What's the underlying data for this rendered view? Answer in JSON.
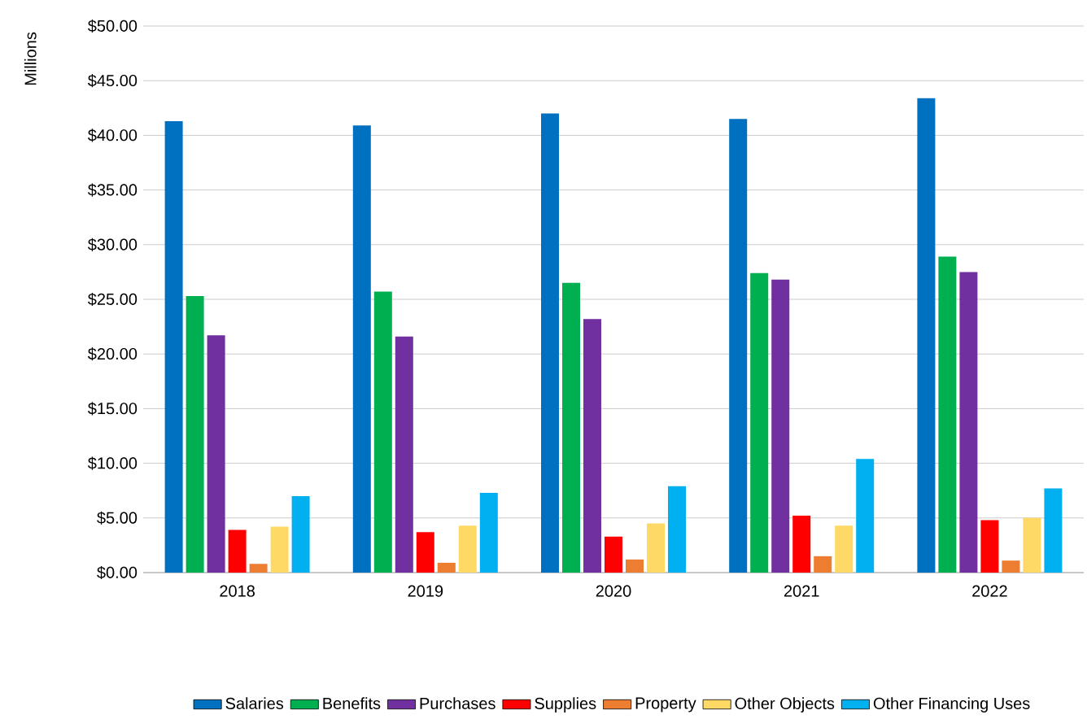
{
  "chart_data": {
    "type": "bar",
    "ylabel": "Millions",
    "categories": [
      "2018",
      "2019",
      "2020",
      "2021",
      "2022"
    ],
    "series": [
      {
        "name": "Salaries",
        "color": "#0070c0",
        "values": [
          41.3,
          40.9,
          42.0,
          41.5,
          43.4
        ]
      },
      {
        "name": "Benefits",
        "color": "#00b050",
        "values": [
          25.3,
          25.7,
          26.5,
          27.4,
          28.9
        ]
      },
      {
        "name": "Purchases",
        "color": "#7030a0",
        "values": [
          21.7,
          21.6,
          23.2,
          26.8,
          27.5
        ]
      },
      {
        "name": "Supplies",
        "color": "#ff0000",
        "values": [
          3.9,
          3.7,
          3.3,
          5.2,
          4.8
        ]
      },
      {
        "name": "Property",
        "color": "#ed7d31",
        "values": [
          0.8,
          0.9,
          1.2,
          1.5,
          1.1
        ]
      },
      {
        "name": "Other Objects",
        "color": "#ffd966",
        "values": [
          4.2,
          4.3,
          4.5,
          4.3,
          5.0
        ]
      },
      {
        "name": "Other Financing Uses",
        "color": "#00b0f0",
        "values": [
          7.0,
          7.3,
          7.9,
          10.4,
          7.7
        ]
      }
    ],
    "ylim": [
      0,
      50
    ],
    "yticks": [
      {
        "value": 0,
        "label": "$0.00"
      },
      {
        "value": 5,
        "label": "$5.00"
      },
      {
        "value": 10,
        "label": "$10.00"
      },
      {
        "value": 15,
        "label": "$15.00"
      },
      {
        "value": 20,
        "label": "$20.00"
      },
      {
        "value": 25,
        "label": "$25.00"
      },
      {
        "value": 30,
        "label": "$30.00"
      },
      {
        "value": 35,
        "label": "$35.00"
      },
      {
        "value": 40,
        "label": "$40.00"
      },
      {
        "value": 45,
        "label": "$45.00"
      },
      {
        "value": 50,
        "label": "$50.00"
      }
    ],
    "grid": "y",
    "legend": "bottom"
  }
}
